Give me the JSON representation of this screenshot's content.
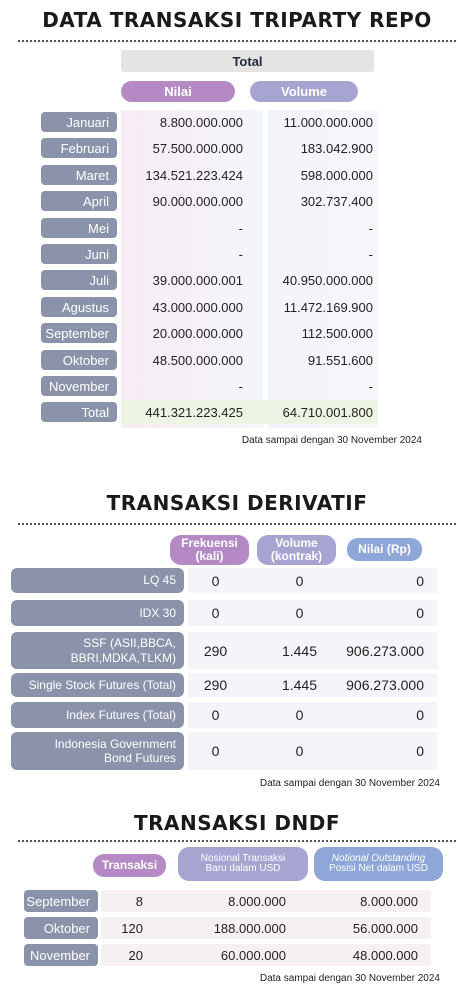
{
  "tri": {
    "title": "DATA TRANSAKSI TRIPARTY REPO",
    "total_header": "Total",
    "col_nilai": "Nilai",
    "col_volume": "Volume",
    "rows": [
      {
        "label": "Januari",
        "nilai": "8.800.000.000",
        "volume": "11.000.000.000"
      },
      {
        "label": "Februari",
        "nilai": "57.500.000.000",
        "volume": "183.042.900"
      },
      {
        "label": "Maret",
        "nilai": "134.521.223.424",
        "volume": "598.000.000"
      },
      {
        "label": "April",
        "nilai": "90.000.000.000",
        "volume": "302.737.400"
      },
      {
        "label": "Mei",
        "nilai": "-",
        "volume": "-"
      },
      {
        "label": "Juni",
        "nilai": "-",
        "volume": "-"
      },
      {
        "label": "Juli",
        "nilai": "39.000.000.001",
        "volume": "40.950.000.000"
      },
      {
        "label": "Agustus",
        "nilai": "43.000.000.000",
        "volume": "11.472.169.900"
      },
      {
        "label": "September",
        "nilai": "20.000.000.000",
        "volume": "112.500.000"
      },
      {
        "label": "Oktober",
        "nilai": "48.500.000.000",
        "volume": "91.551.600"
      },
      {
        "label": "November",
        "nilai": "-",
        "volume": "-"
      },
      {
        "label": "Total",
        "nilai": "441.321.223.425",
        "volume": "64.710.001.800"
      }
    ],
    "note": "Data sampai dengan 30 November 2024"
  },
  "deriv": {
    "title": "TRANSAKSI DERIVATIF",
    "col_frek_1": "Frekuensi",
    "col_frek_2": "(kali)",
    "col_vol_1": "Volume",
    "col_vol_2": "(kontrak)",
    "col_nilai": "Nilai (Rp)",
    "rows": [
      {
        "label": "LQ 45",
        "frek": "0",
        "vol": "0",
        "nilai": "0"
      },
      {
        "label": "IDX 30",
        "frek": "0",
        "vol": "0",
        "nilai": "0"
      },
      {
        "label": "SSF (ASII,BBCA,",
        "label2": "BBRI,MDKA,TLKM)",
        "frek": "290",
        "vol": "1.445",
        "nilai": "906.273.000"
      },
      {
        "label": "Single Stock Futures (Total)",
        "frek": "290",
        "vol": "1.445",
        "nilai": "906.273.000"
      },
      {
        "label": "Index Futures (Total)",
        "frek": "0",
        "vol": "0",
        "nilai": "0"
      },
      {
        "label": "Indonesia Government",
        "label2": "Bond Futures",
        "frek": "0",
        "vol": "0",
        "nilai": "0"
      }
    ],
    "note": "Data sampai dengan 30 November 2024"
  },
  "dndf": {
    "title": "TRANSAKSI DNDF",
    "col_trans": "Transaksi",
    "col_nos_1": "Nosional Transaksi",
    "col_nos_2": "Baru dalam USD",
    "col_not_1": "Notional Outstanding",
    "col_not_2": "Posisi Net dalam USD",
    "rows": [
      {
        "label": "September",
        "trans": "8",
        "nos": "8.000.000",
        "not": "8.000.000"
      },
      {
        "label": "Oktober",
        "trans": "120",
        "nos": "188.000.000",
        "not": "56.000.000"
      },
      {
        "label": "November",
        "trans": "20",
        "nos": "60.000.000",
        "not": "48.000.000"
      }
    ],
    "note": "Data sampai dengan 30 November 2024"
  },
  "colors": {
    "pill_purple": "#b58ac4",
    "pill_lavender": "#a7a4d2",
    "pill_blue": "#8fa6d8",
    "label_slate": "#8a93aa",
    "header_gray": "#e6e6e6"
  }
}
